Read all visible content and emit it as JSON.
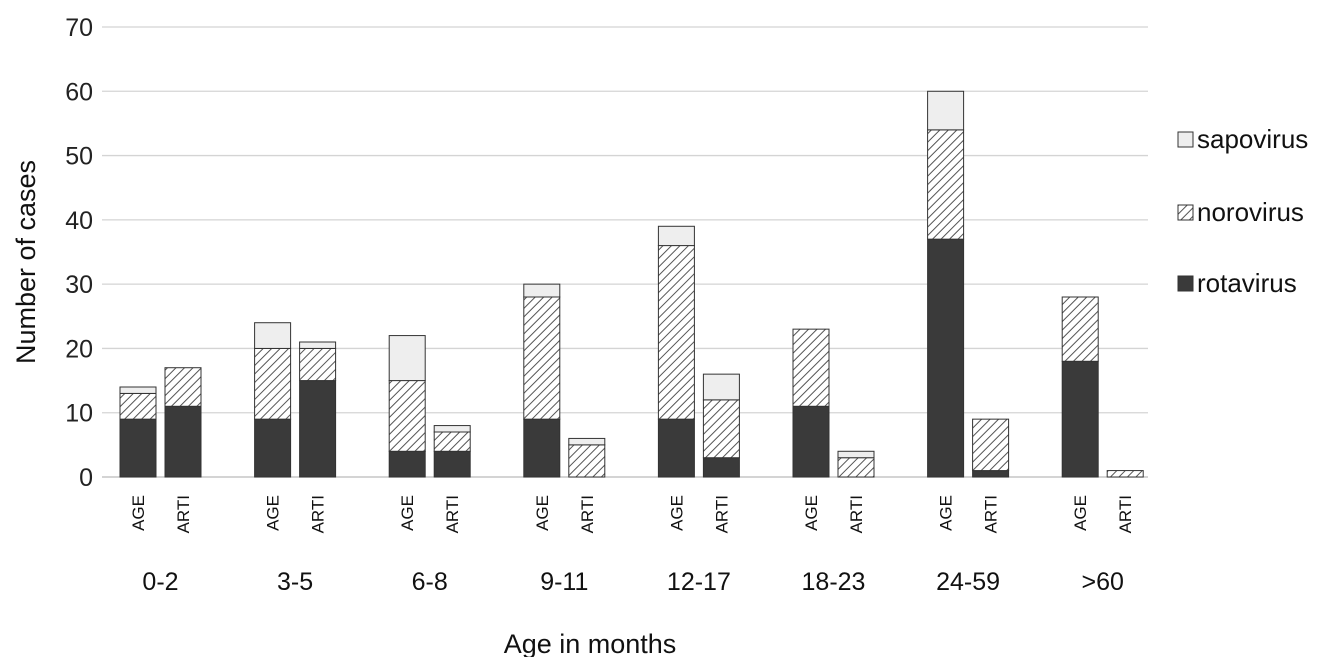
{
  "chart_data": {
    "type": "bar",
    "stacked": true,
    "xlabel": "Age in months",
    "ylabel": "Number of cases",
    "ylim": [
      0,
      70
    ],
    "yticks": [
      0,
      10,
      20,
      30,
      40,
      50,
      60,
      70
    ],
    "grid": "horizontal",
    "legend_position": "right",
    "group_labels": [
      "0-2",
      "3-5",
      "6-8",
      "9-11",
      "12-17",
      "18-23",
      "24-59",
      ">60"
    ],
    "sub_labels": [
      "AGE",
      "ARTI"
    ],
    "series": [
      {
        "name": "rotavirus",
        "fill": "solid",
        "color": "#3a3a3a",
        "values": [
          [
            9,
            11
          ],
          [
            9,
            15
          ],
          [
            4,
            4
          ],
          [
            9,
            0
          ],
          [
            9,
            3
          ],
          [
            11,
            0
          ],
          [
            37,
            1
          ],
          [
            18,
            0
          ]
        ]
      },
      {
        "name": "norovirus",
        "fill": "hatched",
        "color": "#555555",
        "values": [
          [
            4,
            6
          ],
          [
            11,
            5
          ],
          [
            11,
            3
          ],
          [
            19,
            5
          ],
          [
            27,
            9
          ],
          [
            12,
            3
          ],
          [
            17,
            8
          ],
          [
            10,
            1
          ]
        ]
      },
      {
        "name": "sapovirus",
        "fill": "light",
        "color": "#eeeeee",
        "values": [
          [
            1,
            0
          ],
          [
            4,
            1
          ],
          [
            7,
            1
          ],
          [
            2,
            1
          ],
          [
            3,
            4
          ],
          [
            0,
            1
          ],
          [
            6,
            0
          ],
          [
            0,
            0
          ]
        ]
      }
    ],
    "legend_order": [
      "sapovirus",
      "norovirus",
      "rotavirus"
    ]
  }
}
